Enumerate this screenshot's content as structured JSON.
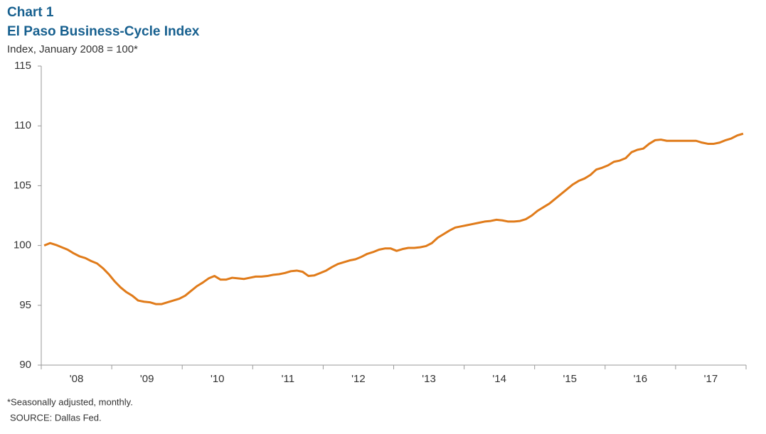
{
  "chart_data": {
    "type": "line",
    "chart_label": "Chart 1",
    "title": "El Paso Business-Cycle Index",
    "subtitle": "Index, January 2008 = 100*",
    "notes": [
      "*Seasonally adjusted, monthly.",
      "SOURCE:  Dallas Fed."
    ],
    "color": "#e07b1a",
    "categories": [
      null,
      null,
      null,
      null,
      null,
      null,
      "'08",
      null,
      null,
      null,
      null,
      null,
      null,
      null,
      null,
      null,
      null,
      null,
      "'09",
      null,
      null,
      null,
      null,
      null,
      null,
      null,
      null,
      null,
      null,
      null,
      "'10",
      null,
      null,
      null,
      null,
      null,
      null,
      null,
      null,
      null,
      null,
      null,
      "'11",
      null,
      null,
      null,
      null,
      null,
      null,
      null,
      null,
      null,
      null,
      null,
      "'12",
      null,
      null,
      null,
      null,
      null,
      null,
      null,
      null,
      null,
      null,
      null,
      "'13",
      null,
      null,
      null,
      null,
      null,
      null,
      null,
      null,
      null,
      null,
      null,
      "'14",
      null,
      null,
      null,
      null,
      null,
      null,
      null,
      null,
      null,
      null,
      null,
      "'15",
      null,
      null,
      null,
      null,
      null,
      null,
      null,
      null,
      null,
      null,
      null,
      "'16",
      null,
      null,
      null,
      null,
      null,
      null,
      null,
      null,
      null,
      null,
      null,
      "'17",
      null,
      null,
      null,
      null,
      null
    ],
    "values": [
      100.0,
      100.2,
      100.05,
      99.85,
      99.65,
      99.35,
      99.1,
      98.95,
      98.7,
      98.5,
      98.1,
      97.6,
      97.0,
      96.5,
      96.1,
      95.8,
      95.4,
      95.3,
      95.25,
      95.1,
      95.1,
      95.25,
      95.4,
      95.55,
      95.8,
      96.2,
      96.6,
      96.9,
      97.25,
      97.45,
      97.15,
      97.15,
      97.3,
      97.25,
      97.2,
      97.3,
      97.4,
      97.4,
      97.45,
      97.55,
      97.6,
      97.7,
      97.85,
      97.9,
      97.8,
      97.45,
      97.5,
      97.7,
      97.9,
      98.2,
      98.45,
      98.6,
      98.75,
      98.85,
      99.05,
      99.3,
      99.45,
      99.65,
      99.75,
      99.75,
      99.55,
      99.7,
      99.8,
      99.8,
      99.85,
      99.95,
      100.2,
      100.65,
      100.95,
      101.25,
      101.5,
      101.6,
      101.7,
      101.8,
      101.9,
      102.0,
      102.05,
      102.15,
      102.1,
      102.0,
      102.0,
      102.05,
      102.2,
      102.5,
      102.9,
      103.2,
      103.5,
      103.9,
      104.3,
      104.7,
      105.1,
      105.4,
      105.6,
      105.9,
      106.35,
      106.5,
      106.7,
      107.0,
      107.1,
      107.3,
      107.8,
      108.0,
      108.1,
      108.5,
      108.8,
      108.85,
      108.75,
      108.75,
      108.75,
      108.75,
      108.75,
      108.75,
      108.6,
      108.5,
      108.5,
      108.6,
      108.8,
      108.95,
      109.2,
      109.35
    ],
    "ylim": [
      90,
      115
    ],
    "yticks": [
      90,
      95,
      100,
      105,
      110,
      115
    ]
  }
}
